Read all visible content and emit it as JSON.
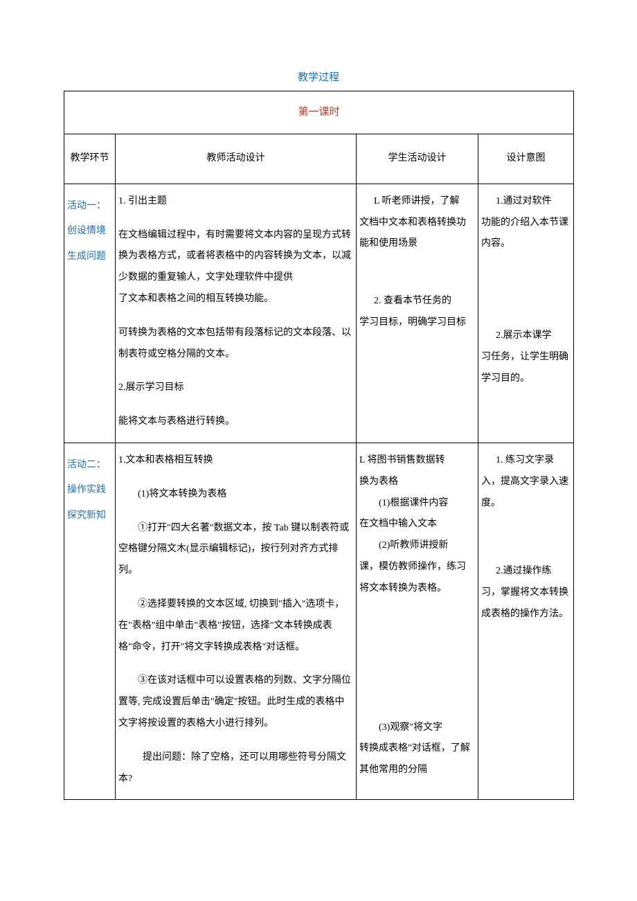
{
  "title": "教学过程",
  "session": "第一课时",
  "headers": {
    "phase": "教学环节",
    "teacher": "教师活动设计",
    "student": "学生活动设计",
    "intent": "设计意图"
  },
  "rows": [
    {
      "phase_lines": [
        "活动一：",
        "创设情境",
        "生成问题"
      ],
      "teacher": {
        "h1": "1. 引出主题",
        "p1": "在文档编辑过程中，有时需要将文本内容的呈现方式转换为表格方式，或者将表格中的内容转换为文本，以减少数据的重复输人，文字处理软件中提供",
        "p1b": "了文本和表格之间的相互转换功能。",
        "p2": "可转换为表格的文本包括带有段落标记的文本段落、以制表符或空格分隔的文本。",
        "h2": "2.展示学习目标",
        "p3": "能将文本与表格进行转换。"
      },
      "student": {
        "s1a": "L 听老师讲授，了解",
        "s1b": "文档中文本和表格转换功能和使用场景",
        "s2a": "2. 查看本节任务的",
        "s2b": "学习目标，明确学习目标"
      },
      "intent": {
        "i1a": "1.通过对软件",
        "i1b": "功能的介绍入本节课内容。",
        "i2a": "2.展示本课学",
        "i2b": "习任务，让学生明确学习目的。"
      }
    },
    {
      "phase_lines": [
        "活动二：",
        "操作实践",
        "探究新知"
      ],
      "teacher": {
        "h1": "1.文本和表格相互转换",
        "p1": "(1)将文本转换为表格",
        "p2": "①打开\"四大名著\"数据文本，按 Tab 键以制表符或空格键分隔文木(显示编辑标记)，按行列对齐方式排列。",
        "p3": "②选择要转换的文本区域, 切换到\"插入\"选项卡，在\"表格\"组中单击\"表格\"按钮，选择\"文本转换成表格\"命令，打开\"将文字转换成表格\"对话框。",
        "p4": "③在该对话框中可以设置表格的列数、文字分隔位置等, 完成设置后单击\"确定\"按钮。此时生成的表格中文字将按设置的表格大小进行排列。",
        "p5": "提出问题：除了空格，还可以用哪些符号分隔文本?"
      },
      "student": {
        "s1a": "L 将图书销售数据转",
        "s1b": "换为表格",
        "s2a": "(1)根据课件内容",
        "s2b": "在文档中输入文本",
        "s3a": "(2)听教师讲授新",
        "s3b": "课，模仿教师操作，练习将文本转换为表格。",
        "s4a": "(3)观察\"将文字",
        "s4b": "转换成表格\"对话框，了解其他常用的分隔"
      },
      "intent": {
        "i1a": "1. 练习文字录",
        "i1b": "入，提高文字录入速度。",
        "i2a": "2.通过操作练",
        "i2b": "习，掌握将文本转换成表格的操作方法。"
      }
    }
  ]
}
